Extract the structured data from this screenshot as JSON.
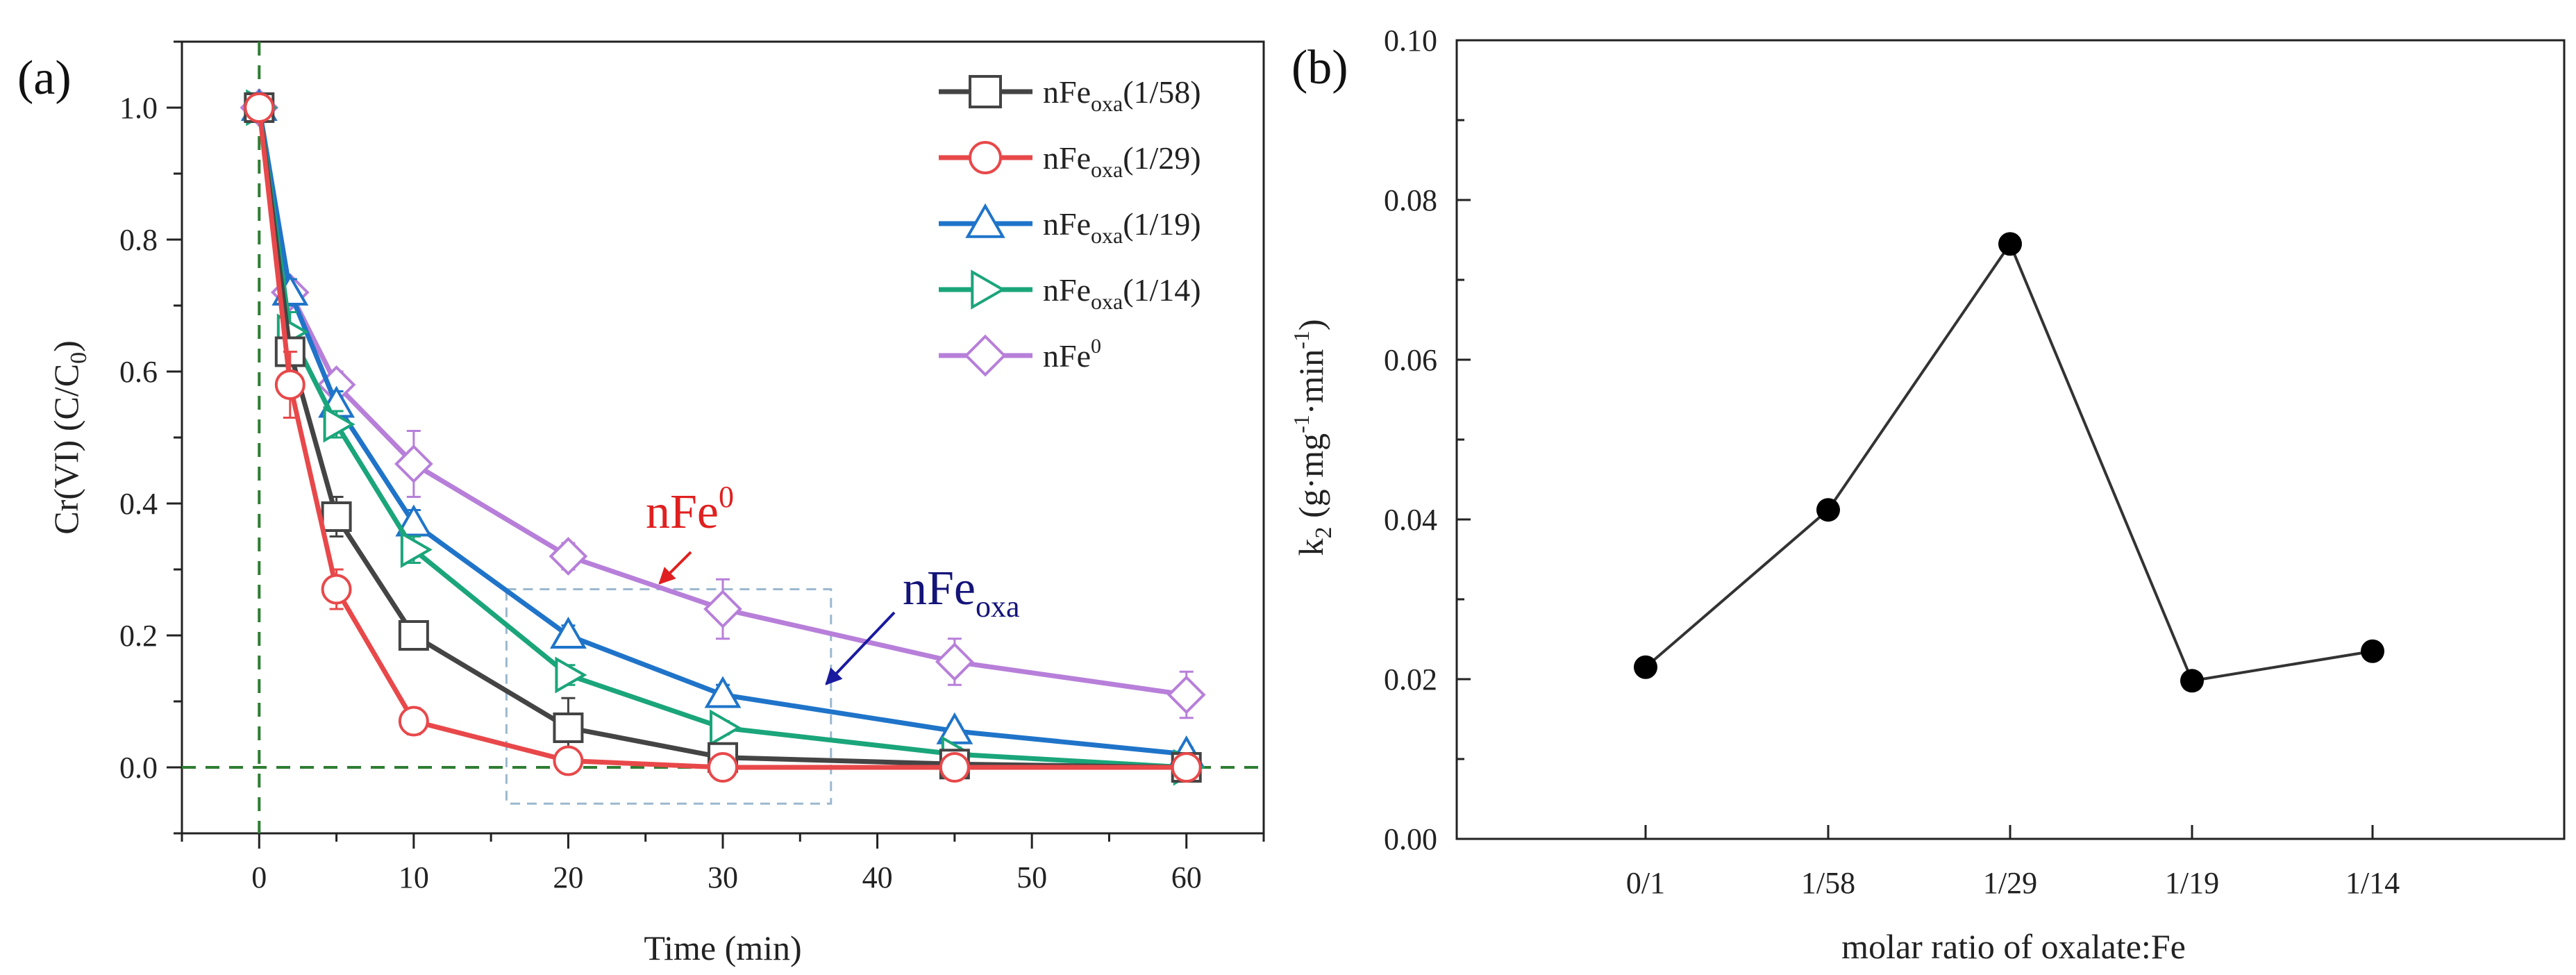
{
  "colors": {
    "nFeoxa_1_58": "#444444",
    "nFeoxa_1_29": "#e8484a",
    "nFeoxa_1_19": "#1f74c9",
    "nFeoxa_1_14": "#1aa57a",
    "nFe0": "#b77fd9",
    "ref_line": "#2e7d32",
    "box": "#9bb8cf",
    "arrow_red": "#e02020",
    "arrow_blue": "#1a1aa0",
    "label_blue": "#14147a",
    "panel_b_line": "#333333"
  },
  "chart_data": [
    {
      "panel_label": "(a)",
      "type": "line",
      "xlabel": "Time (min)",
      "ylabel": {
        "main": "Cr(VI) (C/C",
        "sub": "0",
        "tail": ")"
      },
      "xlim": [
        -5,
        65
      ],
      "ylim": [
        -0.1,
        1.1
      ],
      "x_ticks": [
        0,
        10,
        20,
        30,
        40,
        50,
        60
      ],
      "x_tick_labels": [
        "0",
        "10",
        "20",
        "30",
        "40",
        "50",
        "60"
      ],
      "y_ticks": [
        0.0,
        0.2,
        0.4,
        0.6,
        0.8,
        1.0
      ],
      "y_tick_labels": [
        "0.0",
        "0.2",
        "0.4",
        "0.6",
        "0.8",
        "1.0"
      ],
      "x": [
        0,
        2,
        5,
        10,
        20,
        30,
        45,
        60
      ],
      "series": [
        {
          "key": "nFeoxa_1_58",
          "base": "nFe",
          "sub": "oxa",
          "tail": "(1/58)",
          "marker": "square",
          "values": [
            1.0,
            0.63,
            0.38,
            0.2,
            0.06,
            0.015,
            0.005,
            0.0
          ],
          "errors": [
            0,
            0.02,
            0.03,
            0.02,
            0.045,
            0.02,
            0.01,
            0
          ]
        },
        {
          "key": "nFeoxa_1_29",
          "base": "nFe",
          "sub": "oxa",
          "tail": "(1/29)",
          "marker": "circle",
          "values": [
            1.0,
            0.58,
            0.27,
            0.07,
            0.01,
            0.0,
            0.0,
            0.0
          ],
          "errors": [
            0,
            0.05,
            0.03,
            0.02,
            0.01,
            0.005,
            0.005,
            0
          ]
        },
        {
          "key": "nFeoxa_1_19",
          "base": "nFe",
          "sub": "oxa",
          "tail": "(1/19)",
          "marker": "triangle-up",
          "values": [
            1.0,
            0.72,
            0.55,
            0.37,
            0.2,
            0.11,
            0.055,
            0.02
          ],
          "errors": [
            0,
            0.02,
            0.02,
            0.02,
            0.015,
            0.015,
            0.01,
            0.01
          ]
        },
        {
          "key": "nFeoxa_1_14",
          "base": "nFe",
          "sub": "oxa",
          "tail": "(1/14)",
          "marker": "triangle-right",
          "values": [
            1.0,
            0.66,
            0.52,
            0.33,
            0.14,
            0.06,
            0.02,
            0.0
          ],
          "errors": [
            0,
            0.03,
            0.02,
            0.02,
            0.015,
            0.01,
            0.01,
            0
          ]
        },
        {
          "key": "nFe0",
          "base": "nFe",
          "sup": "0",
          "tail": "",
          "marker": "diamond",
          "values": [
            1.0,
            0.72,
            0.58,
            0.46,
            0.32,
            0.24,
            0.16,
            0.11
          ],
          "errors": [
            0,
            0.02,
            0.02,
            0.05,
            0.02,
            0.045,
            0.035,
            0.035
          ]
        }
      ],
      "annotations": [
        {
          "key": "nFe0_label",
          "base": "nFe",
          "sup": "0"
        },
        {
          "key": "nFeoxa_label",
          "base": "nFe",
          "sub": "oxa"
        }
      ]
    },
    {
      "panel_label": "(b)",
      "type": "line",
      "xlabel": "molar ratio of oxalate:Fe",
      "ylabel": {
        "p1": "k",
        "p1sub": "2",
        "p2": " (g·mg",
        "p2sup": "-1",
        "p3": "·min",
        "p3sup": "-1",
        "p4": ")"
      },
      "ylim": [
        0.0,
        0.1
      ],
      "y_ticks": [
        0.0,
        0.02,
        0.04,
        0.06,
        0.08,
        0.1
      ],
      "y_tick_labels": [
        "0.00",
        "0.02",
        "0.04",
        "0.06",
        "0.08",
        "0.10"
      ],
      "categories": [
        "0/1",
        "1/58",
        "1/29",
        "1/19",
        "1/14"
      ],
      "values": [
        0.0215,
        0.0412,
        0.0745,
        0.0198,
        0.0235
      ]
    }
  ]
}
